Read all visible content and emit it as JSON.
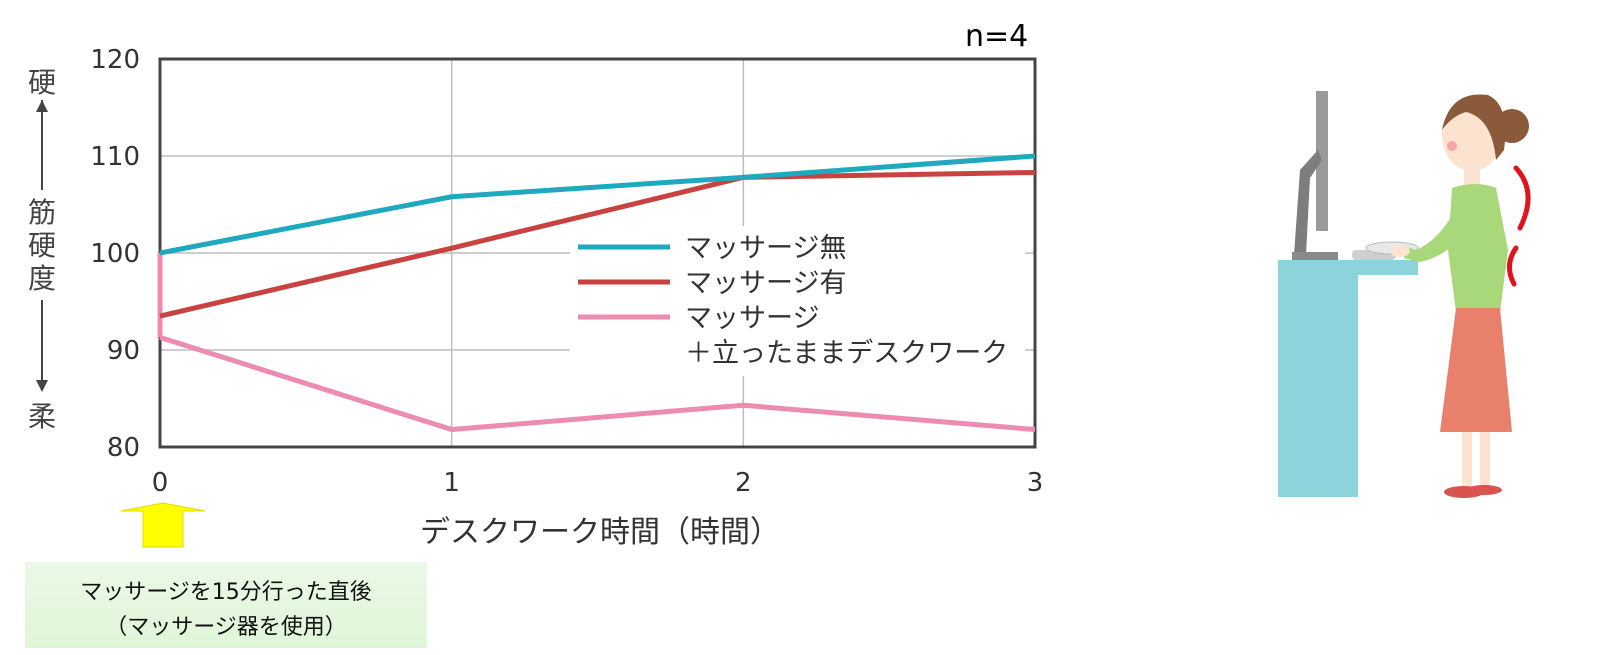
{
  "chart_data": {
    "type": "line",
    "annotation_n": "n=4",
    "x": [
      0,
      1,
      2,
      3
    ],
    "x_tick_labels": [
      "0",
      "1",
      "2",
      "3"
    ],
    "xlabel": "デスクワーク時間（時間）",
    "ylabel_top": "硬",
    "ylabel_middle": [
      "筋",
      "硬",
      "度"
    ],
    "ylabel_bottom": "柔",
    "y_ticks": [
      80,
      90,
      100,
      110,
      120
    ],
    "y_tick_labels": [
      "80",
      "90",
      "100",
      "110",
      "120"
    ],
    "xlim": [
      0,
      3
    ],
    "ylim": [
      80,
      120
    ],
    "grid": true,
    "legend_position": "center-right",
    "series": [
      {
        "name": "マッサージ無",
        "color": "#1ea9bf",
        "values": [
          100,
          105.8,
          107.8,
          110
        ]
      },
      {
        "name": "マッサージ有",
        "color": "#c8423f",
        "values": [
          93.5,
          100.5,
          107.8,
          108.3
        ]
      },
      {
        "name": "マッサージ\n＋立ったままデスクワーク",
        "legend_lines": [
          "マッサージ",
          "＋立ったままデスクワーク"
        ],
        "color": "#ee8bb0",
        "values": [
          91.3,
          81.8,
          84.3,
          81.8
        ]
      }
    ],
    "segment_at_zero": {
      "from": 100,
      "to": 91.3,
      "color": "#ee8bb0"
    }
  },
  "caption": {
    "line1": "マッサージを15分行った直後",
    "line2": "（マッサージ器を使用）",
    "arrow_color": "#ffff00"
  },
  "illustration": {
    "description_icon": "standing-desk-woman-icon",
    "desk_color": "#8dd3dc",
    "posture_arc_color": "#e0141c"
  }
}
